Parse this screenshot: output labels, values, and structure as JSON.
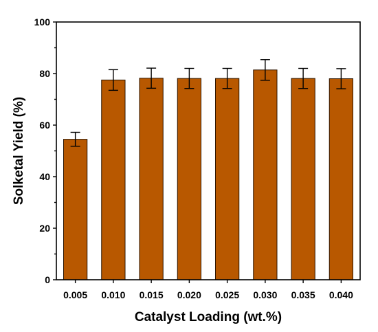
{
  "chart_data": {
    "type": "bar",
    "xlabel": "Catalyst Loading (wt.%)",
    "ylabel": "Solketal Yield (%)",
    "categories": [
      "0.005",
      "0.010",
      "0.015",
      "0.020",
      "0.025",
      "0.030",
      "0.035",
      "0.040"
    ],
    "values": [
      54.5,
      77.5,
      78.2,
      78.1,
      78.1,
      81.4,
      78.1,
      78.0
    ],
    "errors": [
      2.7,
      4.0,
      3.9,
      3.9,
      3.9,
      4.0,
      3.9,
      3.9
    ],
    "ylim": [
      0,
      100
    ],
    "yticks": [
      0,
      20,
      40,
      60,
      80,
      100
    ],
    "bar_color": "#b85800",
    "grid": false,
    "legend": "none"
  }
}
